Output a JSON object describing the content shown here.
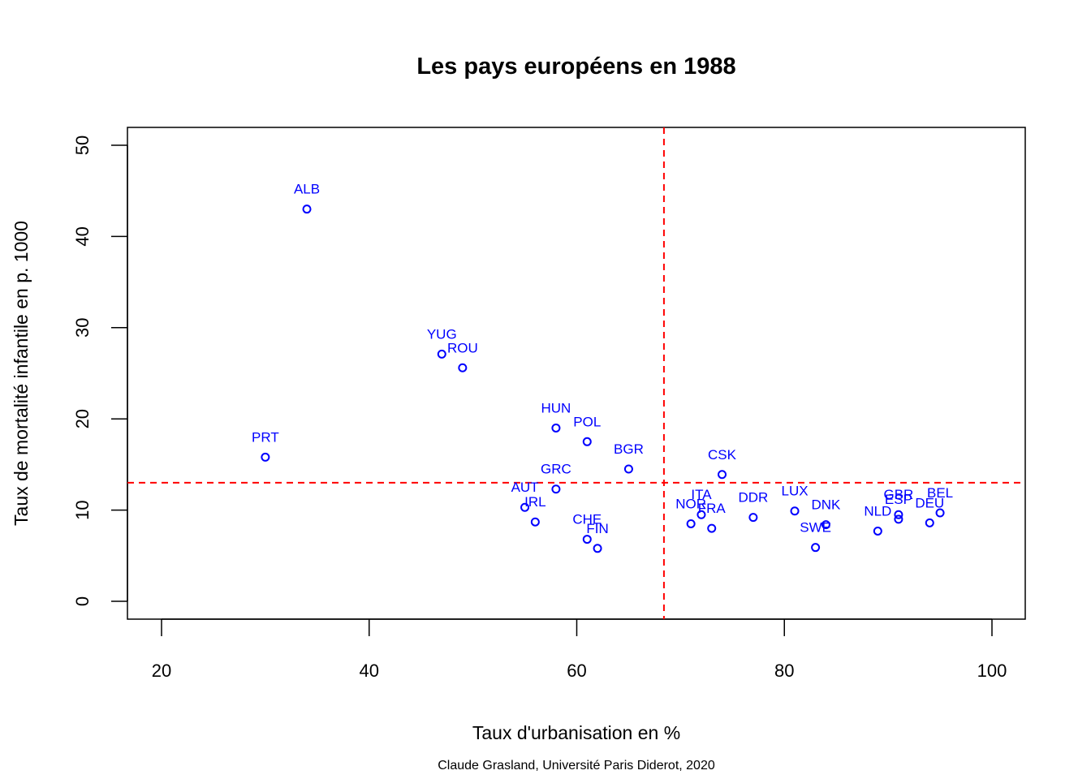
{
  "chart_data": {
    "type": "scatter",
    "title": "Les pays européens en 1988",
    "xlabel": "Taux d'urbanisation en %",
    "ylabel": "Taux de mortalité infantile en p. 1000",
    "caption": "Claude Grasland, Université Paris Diderot, 2020",
    "xlim": [
      20,
      100
    ],
    "ylim": [
      0,
      50
    ],
    "xticks": [
      20,
      40,
      60,
      80,
      100
    ],
    "yticks": [
      0,
      10,
      20,
      30,
      40,
      50
    ],
    "point_color": "#0000ff",
    "reference_line_color": "#ff0000",
    "mean_x": 68.4,
    "mean_y": 13.0,
    "points": [
      {
        "label": "ALB",
        "x": 34,
        "y": 43.0
      },
      {
        "label": "YUG",
        "x": 47,
        "y": 27.1
      },
      {
        "label": "ROU",
        "x": 49,
        "y": 25.6
      },
      {
        "label": "PRT",
        "x": 30,
        "y": 15.8
      },
      {
        "label": "HUN",
        "x": 58,
        "y": 19.0
      },
      {
        "label": "POL",
        "x": 61,
        "y": 17.5
      },
      {
        "label": "BGR",
        "x": 65,
        "y": 14.5
      },
      {
        "label": "GRC",
        "x": 58,
        "y": 12.3
      },
      {
        "label": "AUT",
        "x": 55,
        "y": 10.3
      },
      {
        "label": "IRL",
        "x": 56,
        "y": 8.7
      },
      {
        "label": "CHE",
        "x": 61,
        "y": 6.8
      },
      {
        "label": "FIN",
        "x": 62,
        "y": 5.8
      },
      {
        "label": "CSK",
        "x": 74,
        "y": 13.9
      },
      {
        "label": "ITA",
        "x": 72,
        "y": 9.5
      },
      {
        "label": "NOR",
        "x": 71,
        "y": 8.5
      },
      {
        "label": "FRA",
        "x": 73,
        "y": 8.0
      },
      {
        "label": "DDR",
        "x": 77,
        "y": 9.2
      },
      {
        "label": "LUX",
        "x": 81,
        "y": 9.9
      },
      {
        "label": "DNK",
        "x": 84,
        "y": 8.4
      },
      {
        "label": "SWE",
        "x": 83,
        "y": 5.9
      },
      {
        "label": "NLD",
        "x": 89,
        "y": 7.7
      },
      {
        "label": "GBR",
        "x": 91,
        "y": 9.5
      },
      {
        "label": "ESP",
        "x": 91,
        "y": 9.0
      },
      {
        "label": "DEU",
        "x": 94,
        "y": 8.6
      },
      {
        "label": "BEL",
        "x": 95,
        "y": 9.7
      }
    ]
  }
}
